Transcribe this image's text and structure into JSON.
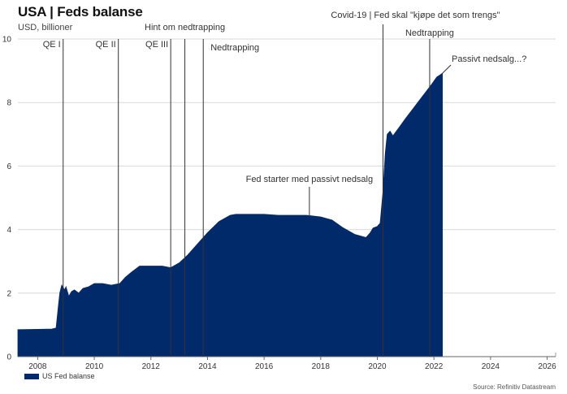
{
  "title": "USA | Feds balanse",
  "subtitle": "USD, billioner",
  "source": "Source: Refinitiv Datastream",
  "legend_label": "US Fed balanse",
  "colors": {
    "area": "#012a6b",
    "grid": "#d9d9d9",
    "event_line": "#333333"
  },
  "chart_data": {
    "type": "area",
    "title": "USA | Feds balanse",
    "ylabel": "USD, billioner",
    "xlim": [
      2007.3,
      2026.3
    ],
    "ylim": [
      0,
      10
    ],
    "x_ticks": [
      "2008",
      "2010",
      "2012",
      "2014",
      "2016",
      "2018",
      "2020",
      "2022",
      "2024",
      "2026"
    ],
    "y_ticks": [
      "0",
      "2",
      "4",
      "6",
      "8",
      "10"
    ],
    "grid": true,
    "legend_position": "bottom-left",
    "series": [
      {
        "name": "US Fed balanse",
        "x": [
          2007.3,
          2008.0,
          2008.5,
          2008.65,
          2008.72,
          2008.78,
          2008.85,
          2008.95,
          2009.0,
          2009.1,
          2009.2,
          2009.3,
          2009.45,
          2009.6,
          2009.8,
          2010.0,
          2010.3,
          2010.6,
          2010.9,
          2011.1,
          2011.3,
          2011.6,
          2011.8,
          2012.0,
          2012.4,
          2012.7,
          2013.0,
          2013.3,
          2013.6,
          2014.0,
          2014.4,
          2014.8,
          2015.0,
          2015.5,
          2016.0,
          2016.5,
          2017.0,
          2017.5,
          2018.0,
          2018.4,
          2018.8,
          2019.2,
          2019.6,
          2019.75,
          2019.85,
          2020.0,
          2020.1,
          2020.2,
          2020.28,
          2020.35,
          2020.45,
          2020.55,
          2020.8,
          2021.0,
          2021.3,
          2021.6,
          2021.9,
          2022.1,
          2022.3
        ],
        "y": [
          0.85,
          0.86,
          0.87,
          0.9,
          1.5,
          2.0,
          2.25,
          2.1,
          2.2,
          1.9,
          2.05,
          2.1,
          2.0,
          2.15,
          2.2,
          2.3,
          2.3,
          2.25,
          2.3,
          2.5,
          2.65,
          2.85,
          2.85,
          2.85,
          2.85,
          2.8,
          2.95,
          3.2,
          3.5,
          3.9,
          4.25,
          4.45,
          4.48,
          4.48,
          4.48,
          4.45,
          4.45,
          4.45,
          4.4,
          4.3,
          4.05,
          3.85,
          3.75,
          3.9,
          4.05,
          4.1,
          4.2,
          5.2,
          6.4,
          7.0,
          7.1,
          6.95,
          7.25,
          7.5,
          7.85,
          8.2,
          8.55,
          8.8,
          8.92
        ]
      }
    ],
    "events": [
      {
        "label": "QE I",
        "x": 2008.9
      },
      {
        "label": "QE II",
        "x": 2010.85
      },
      {
        "label": "QE III",
        "x": 2012.7
      },
      {
        "label": "Hint om nedtrapping",
        "x": 2013.2
      },
      {
        "label": "Nedtrapping",
        "x": 2013.85
      },
      {
        "label": "Covid-19 | Fed skal \"kjøpe det som trengs\"",
        "x": 2020.2
      },
      {
        "label": "Nedtrapping",
        "x": 2021.85
      }
    ],
    "annotations": [
      {
        "label": "Fed starter med passivt nedsalg",
        "x": 2017.6,
        "y": 4.45
      },
      {
        "label": "Passivt nedsalg...?",
        "x": 2022.3,
        "y": 8.92
      }
    ]
  }
}
